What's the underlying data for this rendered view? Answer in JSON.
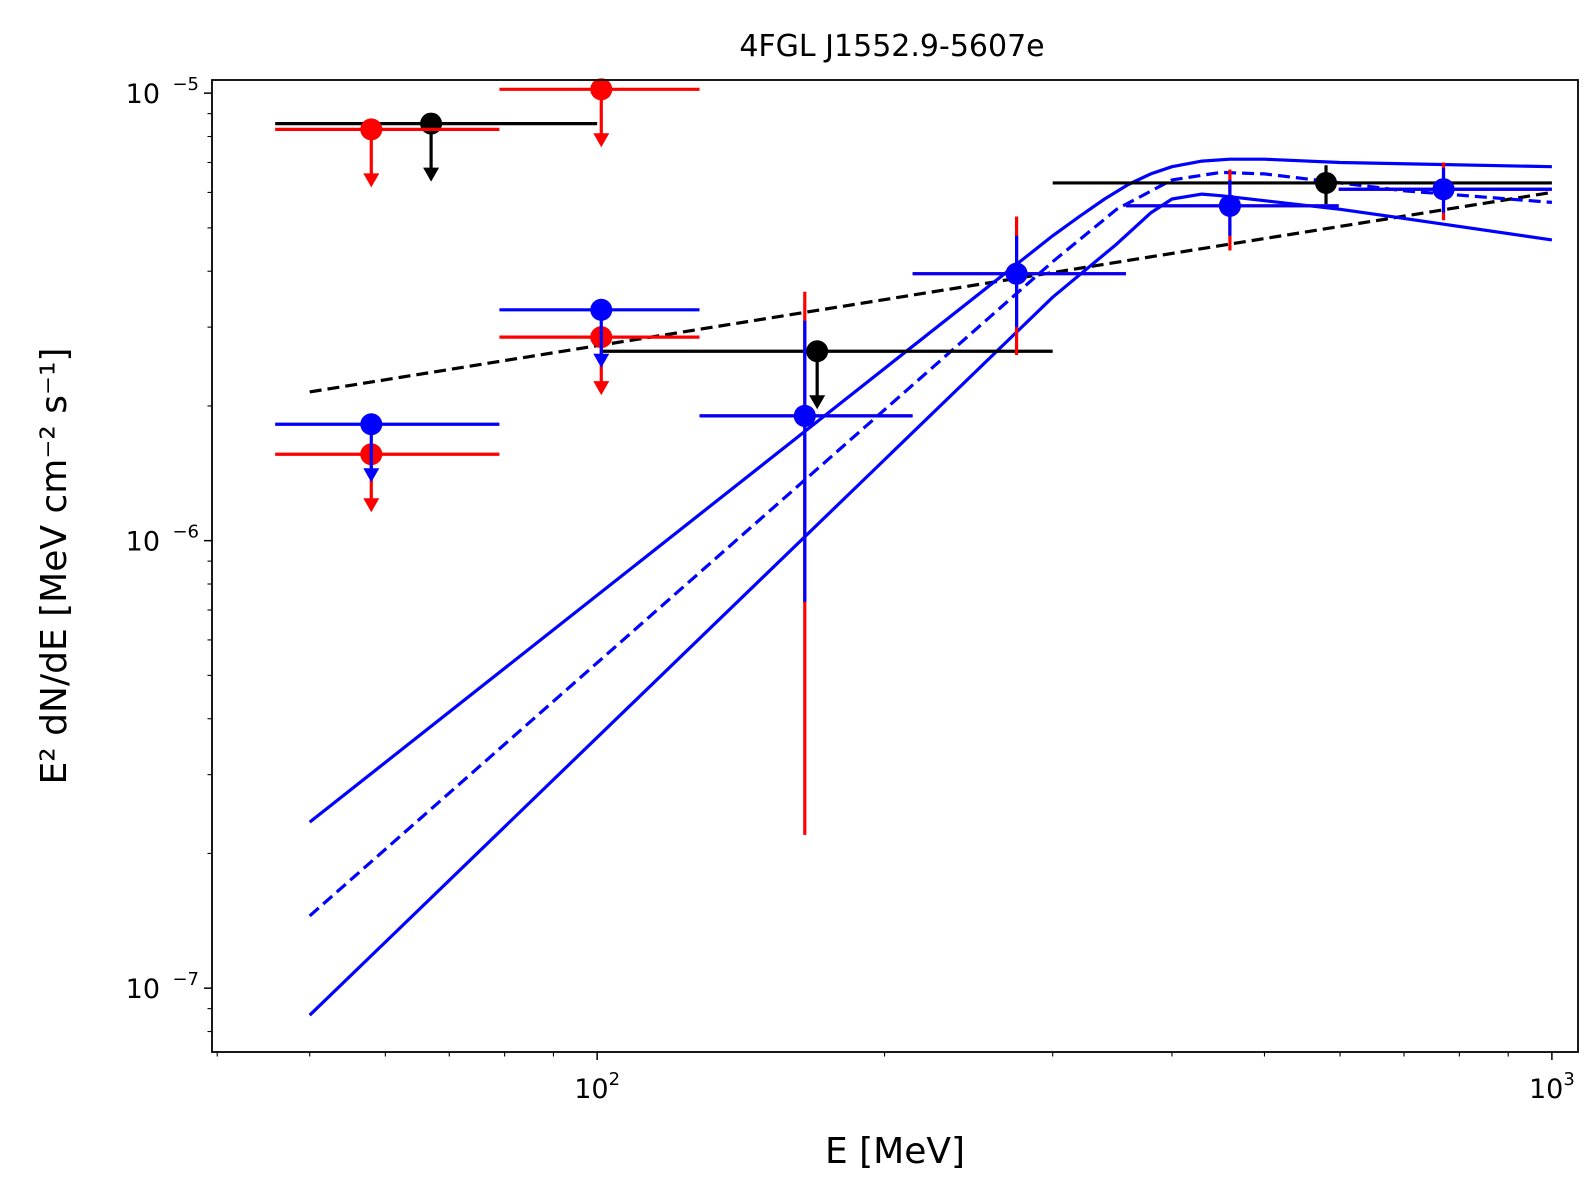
{
  "chart_data": {
    "type": "scatter",
    "title": "4FGL J1552.9-5607e",
    "xlabel": "E [MeV]",
    "ylabel": "E² dN/dE [MeV cm⁻² s⁻¹]",
    "xscale": "log",
    "yscale": "log",
    "xlim": [
      39.5,
      1065
    ],
    "ylim": [
      7.2e-08,
      1.07e-05
    ],
    "x_ticks": [
      {
        "value": 100,
        "base": "10",
        "exp": "2"
      },
      {
        "value": 1000,
        "base": "10",
        "exp": "3"
      }
    ],
    "y_ticks": [
      {
        "value": 1e-07,
        "base": "10",
        "exp": "−7"
      },
      {
        "value": 1e-06,
        "base": "10",
        "exp": "−6"
      },
      {
        "value": 1e-05,
        "base": "10",
        "exp": "−5"
      }
    ],
    "colors": {
      "black": "#000000",
      "red": "#ff0000",
      "blue": "#0000ff"
    },
    "series": [
      {
        "name": "black",
        "color": "#000000",
        "points": [
          {
            "x": 67.0,
            "y": 8.55e-06,
            "xlo": 46.0,
            "xhi": 100.0,
            "ul": true
          },
          {
            "x": 170.0,
            "y": 2.65e-06,
            "xlo": 101.0,
            "xhi": 300.0,
            "ul": true
          },
          {
            "x": 580.0,
            "y": 6.3e-06,
            "xlo": 300.0,
            "xhi": 1000.0,
            "ylo": 5.65e-06,
            "yhi": 6.9e-06,
            "ul": false
          }
        ]
      },
      {
        "name": "red",
        "color": "#ff0000",
        "points": [
          {
            "x": 58.0,
            "y": 8.3e-06,
            "xlo": 46.0,
            "xhi": 79.0,
            "ul": true
          },
          {
            "x": 58.0,
            "y": 1.56e-06,
            "xlo": 46.0,
            "xhi": 79.0,
            "ul": true
          },
          {
            "x": 101.0,
            "y": 1.02e-05,
            "xlo": 79.0,
            "xhi": 128.0,
            "ul": true
          },
          {
            "x": 101.0,
            "y": 2.85e-06,
            "xlo": 79.0,
            "xhi": 128.0,
            "ul": true
          },
          {
            "x": 165.0,
            "y": 1.9e-06,
            "xlo": 128.0,
            "xhi": 214.0,
            "ylo": 2.2e-07,
            "yhi": 3.6e-06,
            "ul": false
          },
          {
            "x": 275.0,
            "y": 3.95e-06,
            "xlo": 214.0,
            "xhi": 358.0,
            "ylo": 2.6e-06,
            "yhi": 5.3e-06,
            "ul": false
          },
          {
            "x": 460.0,
            "y": 5.6e-06,
            "xlo": 358.0,
            "xhi": 598.0,
            "ylo": 4.45e-06,
            "yhi": 6.75e-06,
            "ul": false
          },
          {
            "x": 770.0,
            "y": 6.1e-06,
            "xlo": 598.0,
            "xhi": 1000.0,
            "ylo": 5.2e-06,
            "yhi": 7e-06,
            "ul": false
          }
        ]
      },
      {
        "name": "blue",
        "color": "#0000ff",
        "points": [
          {
            "x": 58.0,
            "y": 1.82e-06,
            "xlo": 46.0,
            "xhi": 79.0,
            "ul": true
          },
          {
            "x": 101.0,
            "y": 3.28e-06,
            "xlo": 79.0,
            "xhi": 128.0,
            "ul": true
          },
          {
            "x": 165.0,
            "y": 1.9e-06,
            "xlo": 128.0,
            "xhi": 214.0,
            "ylo": 7.3e-07,
            "yhi": 3.1e-06,
            "ul": false
          },
          {
            "x": 275.0,
            "y": 3.95e-06,
            "xlo": 214.0,
            "xhi": 358.0,
            "ylo": 3e-06,
            "yhi": 4.8e-06,
            "ul": false
          },
          {
            "x": 460.0,
            "y": 5.6e-06,
            "xlo": 358.0,
            "xhi": 598.0,
            "ylo": 4.8e-06,
            "yhi": 6.4e-06,
            "ul": false
          },
          {
            "x": 770.0,
            "y": 6.1e-06,
            "xlo": 598.0,
            "xhi": 1000.0,
            "ylo": 5.4e-06,
            "yhi": 6.8e-06,
            "ul": false
          }
        ]
      }
    ],
    "model_curves": [
      {
        "name": "black-powerlaw-model",
        "color": "#000000",
        "style": "dashed",
        "x": [
          50,
          1000
        ],
        "y": [
          2.15e-06,
          6e-06
        ]
      },
      {
        "name": "blue-model-best-fit",
        "color": "#0000ff",
        "style": "dashed",
        "x": [
          50,
          300,
          350,
          400,
          450,
          500,
          600,
          700,
          1000
        ],
        "y": [
          1.45e-07,
          4.2e-06,
          5.5e-06,
          6.4e-06,
          6.65e-06,
          6.6e-06,
          6.3e-06,
          6.05e-06,
          5.7e-06
        ]
      },
      {
        "name": "blue-model-upper-band",
        "color": "#0000ff",
        "style": "solid",
        "x": [
          50,
          300,
          320,
          340,
          360,
          380,
          400,
          430,
          460,
          500,
          600,
          1000
        ],
        "y": [
          2.35e-07,
          4.8e-06,
          5.3e-06,
          5.8e-06,
          6.25e-06,
          6.6e-06,
          6.85e-06,
          7.05e-06,
          7.12e-06,
          7.12e-06,
          7e-06,
          6.85e-06
        ]
      },
      {
        "name": "blue-model-lower-band",
        "color": "#0000ff",
        "style": "solid",
        "x": [
          50,
          300,
          350,
          380,
          400,
          430,
          450,
          500,
          600,
          700,
          1000
        ],
        "y": [
          8.7e-08,
          3.5e-06,
          4.6e-06,
          5.4e-06,
          5.8e-06,
          5.95e-06,
          5.9e-06,
          5.75e-06,
          5.5e-06,
          5.25e-06,
          4.7e-06
        ]
      }
    ]
  }
}
